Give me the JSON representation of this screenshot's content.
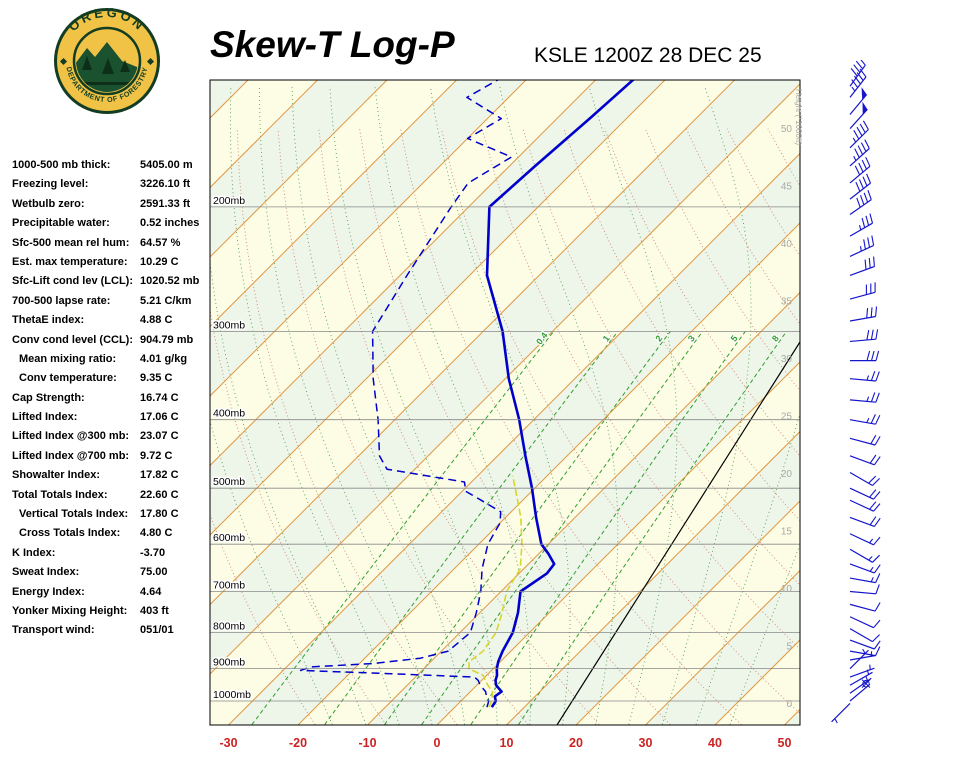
{
  "header": {
    "title": "Skew-T Log-P",
    "station": "KSLE 1200Z 28 DEC 25",
    "logo": {
      "top": "OREGON",
      "bottom": "DEPARTMENT OF FORESTRY"
    }
  },
  "stats": [
    {
      "label": "1000-500 mb thick:",
      "value": "5405.00 m",
      "indent": false
    },
    {
      "label": "Freezing level:",
      "value": "3226.10 ft",
      "indent": false
    },
    {
      "label": "Wetbulb zero:",
      "value": "2591.33 ft",
      "indent": false
    },
    {
      "label": "Precipitable water:",
      "value": "0.52 inches",
      "indent": false
    },
    {
      "label": "Sfc-500 mean rel hum:",
      "value": "64.57 %",
      "indent": false
    },
    {
      "label": "Est. max temperature:",
      "value": "10.29 C",
      "indent": false
    },
    {
      "label": "Sfc-Lift cond lev (LCL):",
      "value": "1020.52 mb",
      "indent": false
    },
    {
      "label": "700-500 lapse rate:",
      "value": "5.21 C/km",
      "indent": false
    },
    {
      "label": "ThetaE index:",
      "value": "4.88 C",
      "indent": false
    },
    {
      "label": "Conv cond level (CCL):",
      "value": "904.79 mb",
      "indent": false
    },
    {
      "label": "Mean mixing ratio:",
      "value": "4.01 g/kg",
      "indent": true
    },
    {
      "label": "Conv temperature:",
      "value": "9.35 C",
      "indent": true
    },
    {
      "label": "Cap Strength:",
      "value": "16.74 C",
      "indent": false
    },
    {
      "label": "Lifted Index:",
      "value": "17.06 C",
      "indent": false
    },
    {
      "label": "Lifted Index @300 mb:",
      "value": "23.07 C",
      "indent": false
    },
    {
      "label": "Lifted Index @700 mb:",
      "value": "9.72 C",
      "indent": false
    },
    {
      "label": "Showalter Index:",
      "value": "17.82 C",
      "indent": false
    },
    {
      "label": "Total Totals Index:",
      "value": "22.60 C",
      "indent": false
    },
    {
      "label": "Vertical Totals Index:",
      "value": "17.80 C",
      "indent": true
    },
    {
      "label": "Cross Totals Index:",
      "value": "4.80 C",
      "indent": true
    },
    {
      "label": "K Index:",
      "value": "-3.70",
      "indent": false
    },
    {
      "label": "Sweat Index:",
      "value": "75.00",
      "indent": false
    },
    {
      "label": "Energy Index:",
      "value": "4.64",
      "indent": false
    },
    {
      "label": "Yonker Mixing Height:",
      "value": "403 ft",
      "indent": false
    },
    {
      "label": "Transport wind:",
      "value": "051/01",
      "indent": false
    }
  ],
  "chart_data": {
    "type": "skewt-log-p",
    "title": "Skew-T Log-P",
    "station_time": "KSLE 1200Z 28 DEC 25",
    "xlabel_ticks": [
      -30,
      -20,
      -10,
      0,
      10,
      20,
      30,
      40,
      50
    ],
    "pressure_labels": [
      "200mb",
      "300mb",
      "400mb",
      "500mb",
      "600mb",
      "700mb",
      "800mb",
      "900mb",
      "1000mb"
    ],
    "height_labels_kft": [
      50,
      45,
      40,
      35,
      30,
      25,
      20,
      15,
      10,
      5,
      0
    ],
    "height_axis_title": "Height (*1000ft)",
    "mixing_ratio_labels_gkg": [
      0.4,
      1,
      2,
      3,
      5,
      8
    ],
    "temperature_profile": {
      "pressure_mb": [
        1020,
        1000,
        985,
        970,
        950,
        935,
        920,
        900,
        880,
        850,
        800,
        750,
        700,
        660,
        640,
        620,
        600,
        550,
        500,
        450,
        400,
        350,
        300,
        250,
        200,
        175,
        150,
        132
      ],
      "temp_c": [
        5.3,
        5.0,
        4.2,
        4.5,
        2.8,
        2.0,
        1.5,
        0.5,
        -0.3,
        -1.2,
        -2.4,
        -4.5,
        -7.2,
        -6.0,
        -6.3,
        -8.5,
        -11.0,
        -15.6,
        -20.4,
        -26.0,
        -32.1,
        -39.5,
        -47.2,
        -57.5,
        -67.0,
        -66.3,
        -65.3,
        -64.6
      ]
    },
    "dewpoint_profile": {
      "pressure_mb": [
        1020,
        1000,
        985,
        970,
        950,
        935,
        925,
        915,
        905,
        895,
        885,
        870,
        850,
        800,
        750,
        700,
        650,
        600,
        560,
        540,
        520,
        505,
        490,
        470,
        450,
        400,
        350,
        300,
        250,
        200,
        185,
        170,
        160,
        150,
        140,
        132
      ],
      "temp_c": [
        4.6,
        4.0,
        3.0,
        2.2,
        0.5,
        -0.5,
        -1.5,
        -14.0,
        -27.5,
        -26.5,
        -18.0,
        -12.0,
        -9.0,
        -8.5,
        -10.5,
        -12.9,
        -16.0,
        -18.7,
        -20.0,
        -21.5,
        -26.0,
        -29.5,
        -31.0,
        -44.0,
        -47.0,
        -52.4,
        -59.0,
        -65.9,
        -69.0,
        -72.5,
        -73.5,
        -71.0,
        -80.0,
        -78.0,
        -86.0,
        -84.0
      ]
    },
    "wetbulb_profile": {
      "pressure_mb": [
        1020,
        1000,
        970,
        950,
        920,
        900,
        880,
        850,
        800,
        750,
        700,
        650,
        600,
        550,
        500,
        480
      ],
      "temp_c": [
        4.9,
        4.4,
        3.2,
        1.6,
        -0.5,
        -3.5,
        -4.5,
        -4.0,
        -4.8,
        -6.8,
        -9.2,
        -10.5,
        -13.8,
        -17.8,
        -22.8,
        -25.0
      ]
    },
    "wind_barbs": [
      {
        "p": 945,
        "dir": 0,
        "kt": 0
      },
      {
        "p": 1008,
        "dir": 225,
        "kt": 3
      },
      {
        "p": 1000,
        "dir": 50,
        "kt": 2
      },
      {
        "p": 975,
        "dir": 55,
        "kt": 3
      },
      {
        "p": 950,
        "dir": 60,
        "kt": 5
      },
      {
        "p": 925,
        "dir": 70,
        "kt": 5
      },
      {
        "p": 900,
        "dir": 45,
        "kt": 5
      },
      {
        "p": 875,
        "dir": 80,
        "kt": 7
      },
      {
        "p": 850,
        "dir": 100,
        "kt": 10
      },
      {
        "p": 820,
        "dir": 110,
        "kt": 10
      },
      {
        "p": 790,
        "dir": 120,
        "kt": 10
      },
      {
        "p": 760,
        "dir": 115,
        "kt": 10
      },
      {
        "p": 730,
        "dir": 105,
        "kt": 12
      },
      {
        "p": 700,
        "dir": 95,
        "kt": 10
      },
      {
        "p": 670,
        "dir": 100,
        "kt": 15
      },
      {
        "p": 640,
        "dir": 110,
        "kt": 15
      },
      {
        "p": 610,
        "dir": 120,
        "kt": 15
      },
      {
        "p": 580,
        "dir": 115,
        "kt": 15
      },
      {
        "p": 550,
        "dir": 110,
        "kt": 18
      },
      {
        "p": 520,
        "dir": 115,
        "kt": 20
      },
      {
        "p": 500,
        "dir": 115,
        "kt": 20
      },
      {
        "p": 475,
        "dir": 120,
        "kt": 20
      },
      {
        "p": 450,
        "dir": 110,
        "kt": 22
      },
      {
        "p": 425,
        "dir": 105,
        "kt": 22
      },
      {
        "p": 400,
        "dir": 100,
        "kt": 25
      },
      {
        "p": 375,
        "dir": 95,
        "kt": 25
      },
      {
        "p": 350,
        "dir": 95,
        "kt": 25
      },
      {
        "p": 330,
        "dir": 90,
        "kt": 28
      },
      {
        "p": 310,
        "dir": 85,
        "kt": 28
      },
      {
        "p": 290,
        "dir": 80,
        "kt": 30
      },
      {
        "p": 270,
        "dir": 75,
        "kt": 30
      },
      {
        "p": 250,
        "dir": 70,
        "kt": 32
      },
      {
        "p": 235,
        "dir": 65,
        "kt": 35
      },
      {
        "p": 220,
        "dir": 60,
        "kt": 35
      },
      {
        "p": 205,
        "dir": 55,
        "kt": 38
      },
      {
        "p": 195,
        "dir": 52,
        "kt": 40
      },
      {
        "p": 185,
        "dir": 50,
        "kt": 42
      },
      {
        "p": 175,
        "dir": 48,
        "kt": 45
      },
      {
        "p": 165,
        "dir": 45,
        "kt": 45
      },
      {
        "p": 155,
        "dir": 42,
        "kt": 48
      },
      {
        "p": 148,
        "dir": 40,
        "kt": 50
      },
      {
        "p": 140,
        "dir": 38,
        "kt": 45
      },
      {
        "p": 135,
        "dir": 36,
        "kt": 42
      }
    ],
    "colors": {
      "temperature": "#0000cc",
      "dewpoint": "#0000cc",
      "wetbulb": "#d6d62e",
      "isotherm": "#e09a45",
      "mixing_ratio": "#2f9e2f",
      "dry_adiabat": "#cc8877",
      "moist_adiabat": "#55a055",
      "axis_labels": "#cc2222",
      "wind_barbs": "#1515cc",
      "band_cream": "#fdfde6",
      "band_green": "#eef5e9"
    }
  }
}
